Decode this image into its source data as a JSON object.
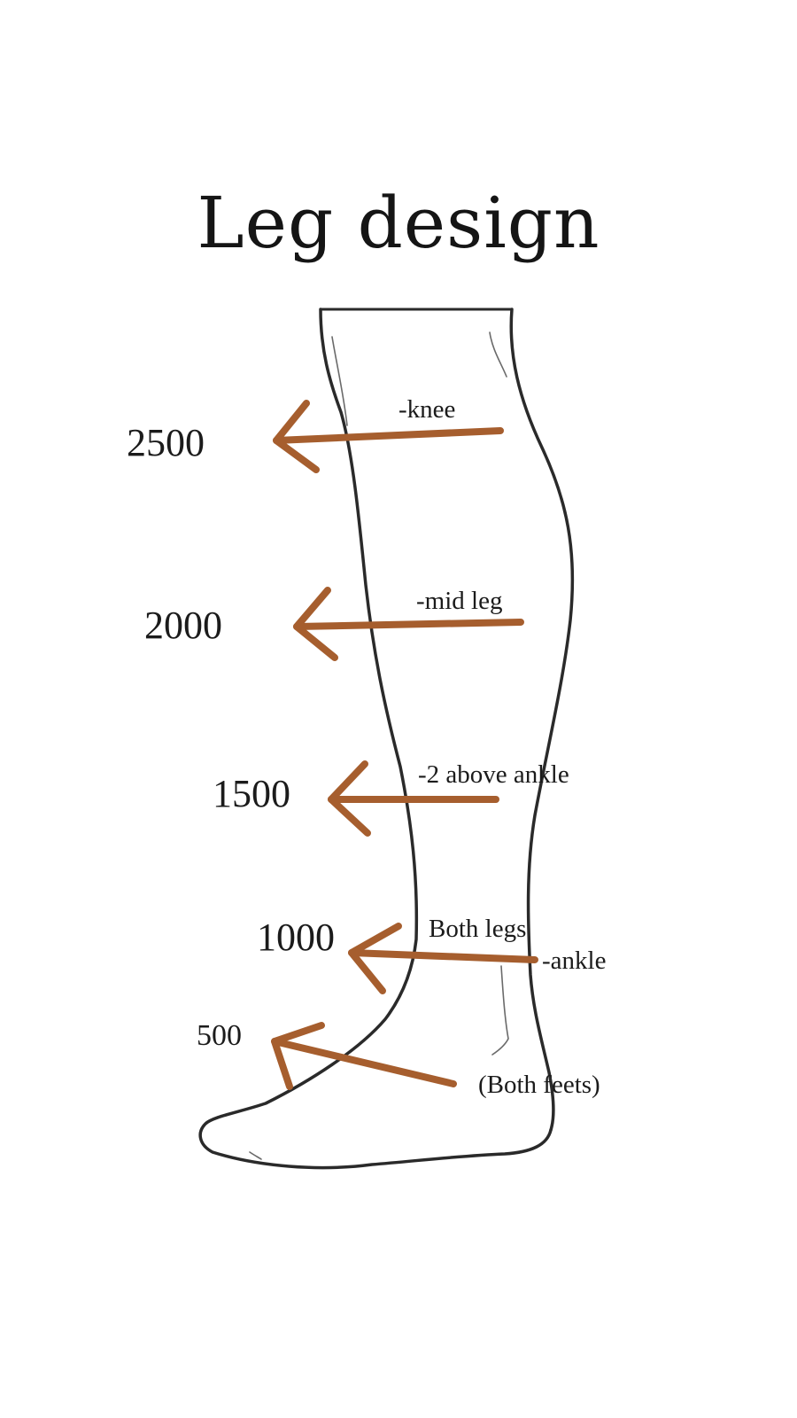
{
  "title": "Leg design",
  "accent_color": "#a65e2e",
  "outline_color": "#2a2a2a",
  "zones": [
    {
      "id": "knee",
      "price": "2500",
      "label": "-knee"
    },
    {
      "id": "mid",
      "price": "2000",
      "label": "-mid leg"
    },
    {
      "id": "above-ankle",
      "price": "1500",
      "label": "-2 above ankle"
    },
    {
      "id": "ankle",
      "price": "1000",
      "label": "-ankle",
      "note": "Both legs"
    },
    {
      "id": "feet",
      "price": "500",
      "label": "(Both feets)"
    }
  ]
}
